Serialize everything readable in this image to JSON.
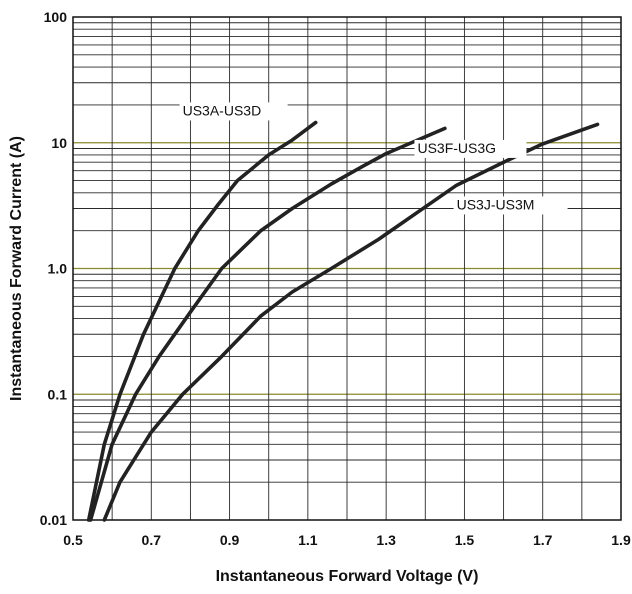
{
  "chart_data": {
    "type": "line",
    "title": "",
    "xlabel": "Instantaneous Forward Voltage (V)",
    "ylabel": "Instantaneous Forward Current (A)",
    "xscale": "linear",
    "yscale": "log",
    "xlim": [
      0.5,
      1.9
    ],
    "ylim": [
      0.01,
      100
    ],
    "grid": true,
    "x_ticks": [
      "0.5",
      "0.7",
      "0.9",
      "1.1",
      "1.3",
      "1.5",
      "1.7",
      "1.9"
    ],
    "y_ticks": [
      "0.01",
      "0.1",
      "1.0",
      "10",
      "100"
    ],
    "highlight_gridline_color": "#8a8a2e",
    "line_color": "#222222",
    "series": [
      {
        "name": "US3A-US3D",
        "points": [
          [
            0.54,
            0.01
          ],
          [
            0.58,
            0.04
          ],
          [
            0.62,
            0.1
          ],
          [
            0.68,
            0.3
          ],
          [
            0.76,
            1.0
          ],
          [
            0.82,
            2.0
          ],
          [
            0.87,
            3.2
          ],
          [
            0.92,
            5.0
          ],
          [
            1.0,
            8.0
          ],
          [
            1.06,
            10.5
          ],
          [
            1.12,
            14.5
          ]
        ]
      },
      {
        "name": "US3F-US3G",
        "points": [
          [
            0.545,
            0.01
          ],
          [
            0.6,
            0.04
          ],
          [
            0.66,
            0.1
          ],
          [
            0.72,
            0.2
          ],
          [
            0.8,
            0.45
          ],
          [
            0.88,
            1.0
          ],
          [
            0.98,
            2.0
          ],
          [
            1.06,
            3.0
          ],
          [
            1.16,
            4.7
          ],
          [
            1.24,
            6.5
          ],
          [
            1.3,
            8.2
          ],
          [
            1.38,
            10.5
          ],
          [
            1.45,
            13.0
          ]
        ]
      },
      {
        "name": "US3J-US3M",
        "points": [
          [
            0.58,
            0.01
          ],
          [
            0.62,
            0.02
          ],
          [
            0.7,
            0.05
          ],
          [
            0.78,
            0.1
          ],
          [
            0.88,
            0.2
          ],
          [
            0.98,
            0.42
          ],
          [
            1.06,
            0.65
          ],
          [
            1.16,
            1.0
          ],
          [
            1.28,
            1.7
          ],
          [
            1.38,
            2.8
          ],
          [
            1.48,
            4.6
          ],
          [
            1.6,
            7.0
          ],
          [
            1.7,
            9.8
          ],
          [
            1.84,
            14.0
          ]
        ]
      }
    ]
  }
}
